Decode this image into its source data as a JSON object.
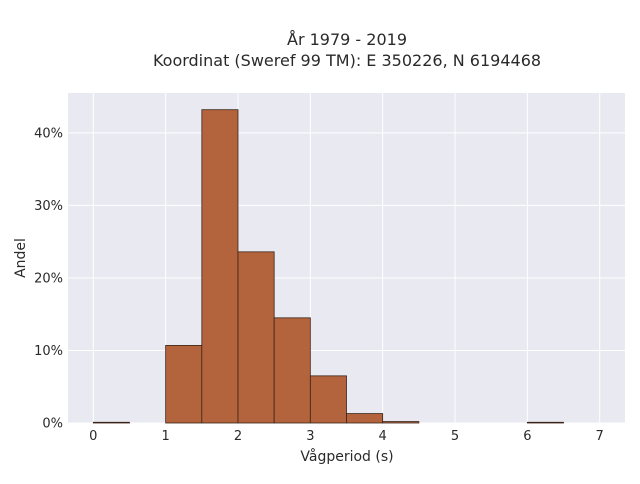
{
  "chart_data": {
    "type": "bar",
    "title": "År 1979 - 2019",
    "subtitle": "Koordinat (Sweref 99 TM): E 350226, N 6194468",
    "xlabel": "Vågperiod (s)",
    "ylabel": "Andel",
    "xlim": [
      -0.35,
      7.35
    ],
    "ylim": [
      0,
      45.5
    ],
    "x_ticks": [
      0,
      1,
      2,
      3,
      4,
      5,
      6,
      7
    ],
    "y_ticks": [
      0,
      10,
      20,
      30,
      40
    ],
    "y_tick_labels": [
      "0%",
      "10%",
      "20%",
      "30%",
      "40%"
    ],
    "bin_width": 0.5,
    "bins": [
      {
        "start": 0.0,
        "end": 0.5,
        "value": 0.1
      },
      {
        "start": 0.5,
        "end": 1.0,
        "value": 0.0
      },
      {
        "start": 1.0,
        "end": 1.5,
        "value": 10.7
      },
      {
        "start": 1.5,
        "end": 2.0,
        "value": 43.2
      },
      {
        "start": 2.0,
        "end": 2.5,
        "value": 23.6
      },
      {
        "start": 2.5,
        "end": 3.0,
        "value": 14.5
      },
      {
        "start": 3.0,
        "end": 3.5,
        "value": 6.5
      },
      {
        "start": 3.5,
        "end": 4.0,
        "value": 1.3
      },
      {
        "start": 4.0,
        "end": 4.5,
        "value": 0.2
      },
      {
        "start": 4.5,
        "end": 5.0,
        "value": 0.0
      },
      {
        "start": 5.0,
        "end": 5.5,
        "value": 0.0
      },
      {
        "start": 5.5,
        "end": 6.0,
        "value": 0.0
      },
      {
        "start": 6.0,
        "end": 6.5,
        "value": 0.1
      },
      {
        "start": 6.5,
        "end": 7.0,
        "value": 0.0
      }
    ],
    "grid": true,
    "colors": {
      "bar_fill": "#b4643c",
      "bar_stroke": "#3a2418",
      "plot_background": "#e9e9f2",
      "grid": "#ffffff"
    }
  }
}
